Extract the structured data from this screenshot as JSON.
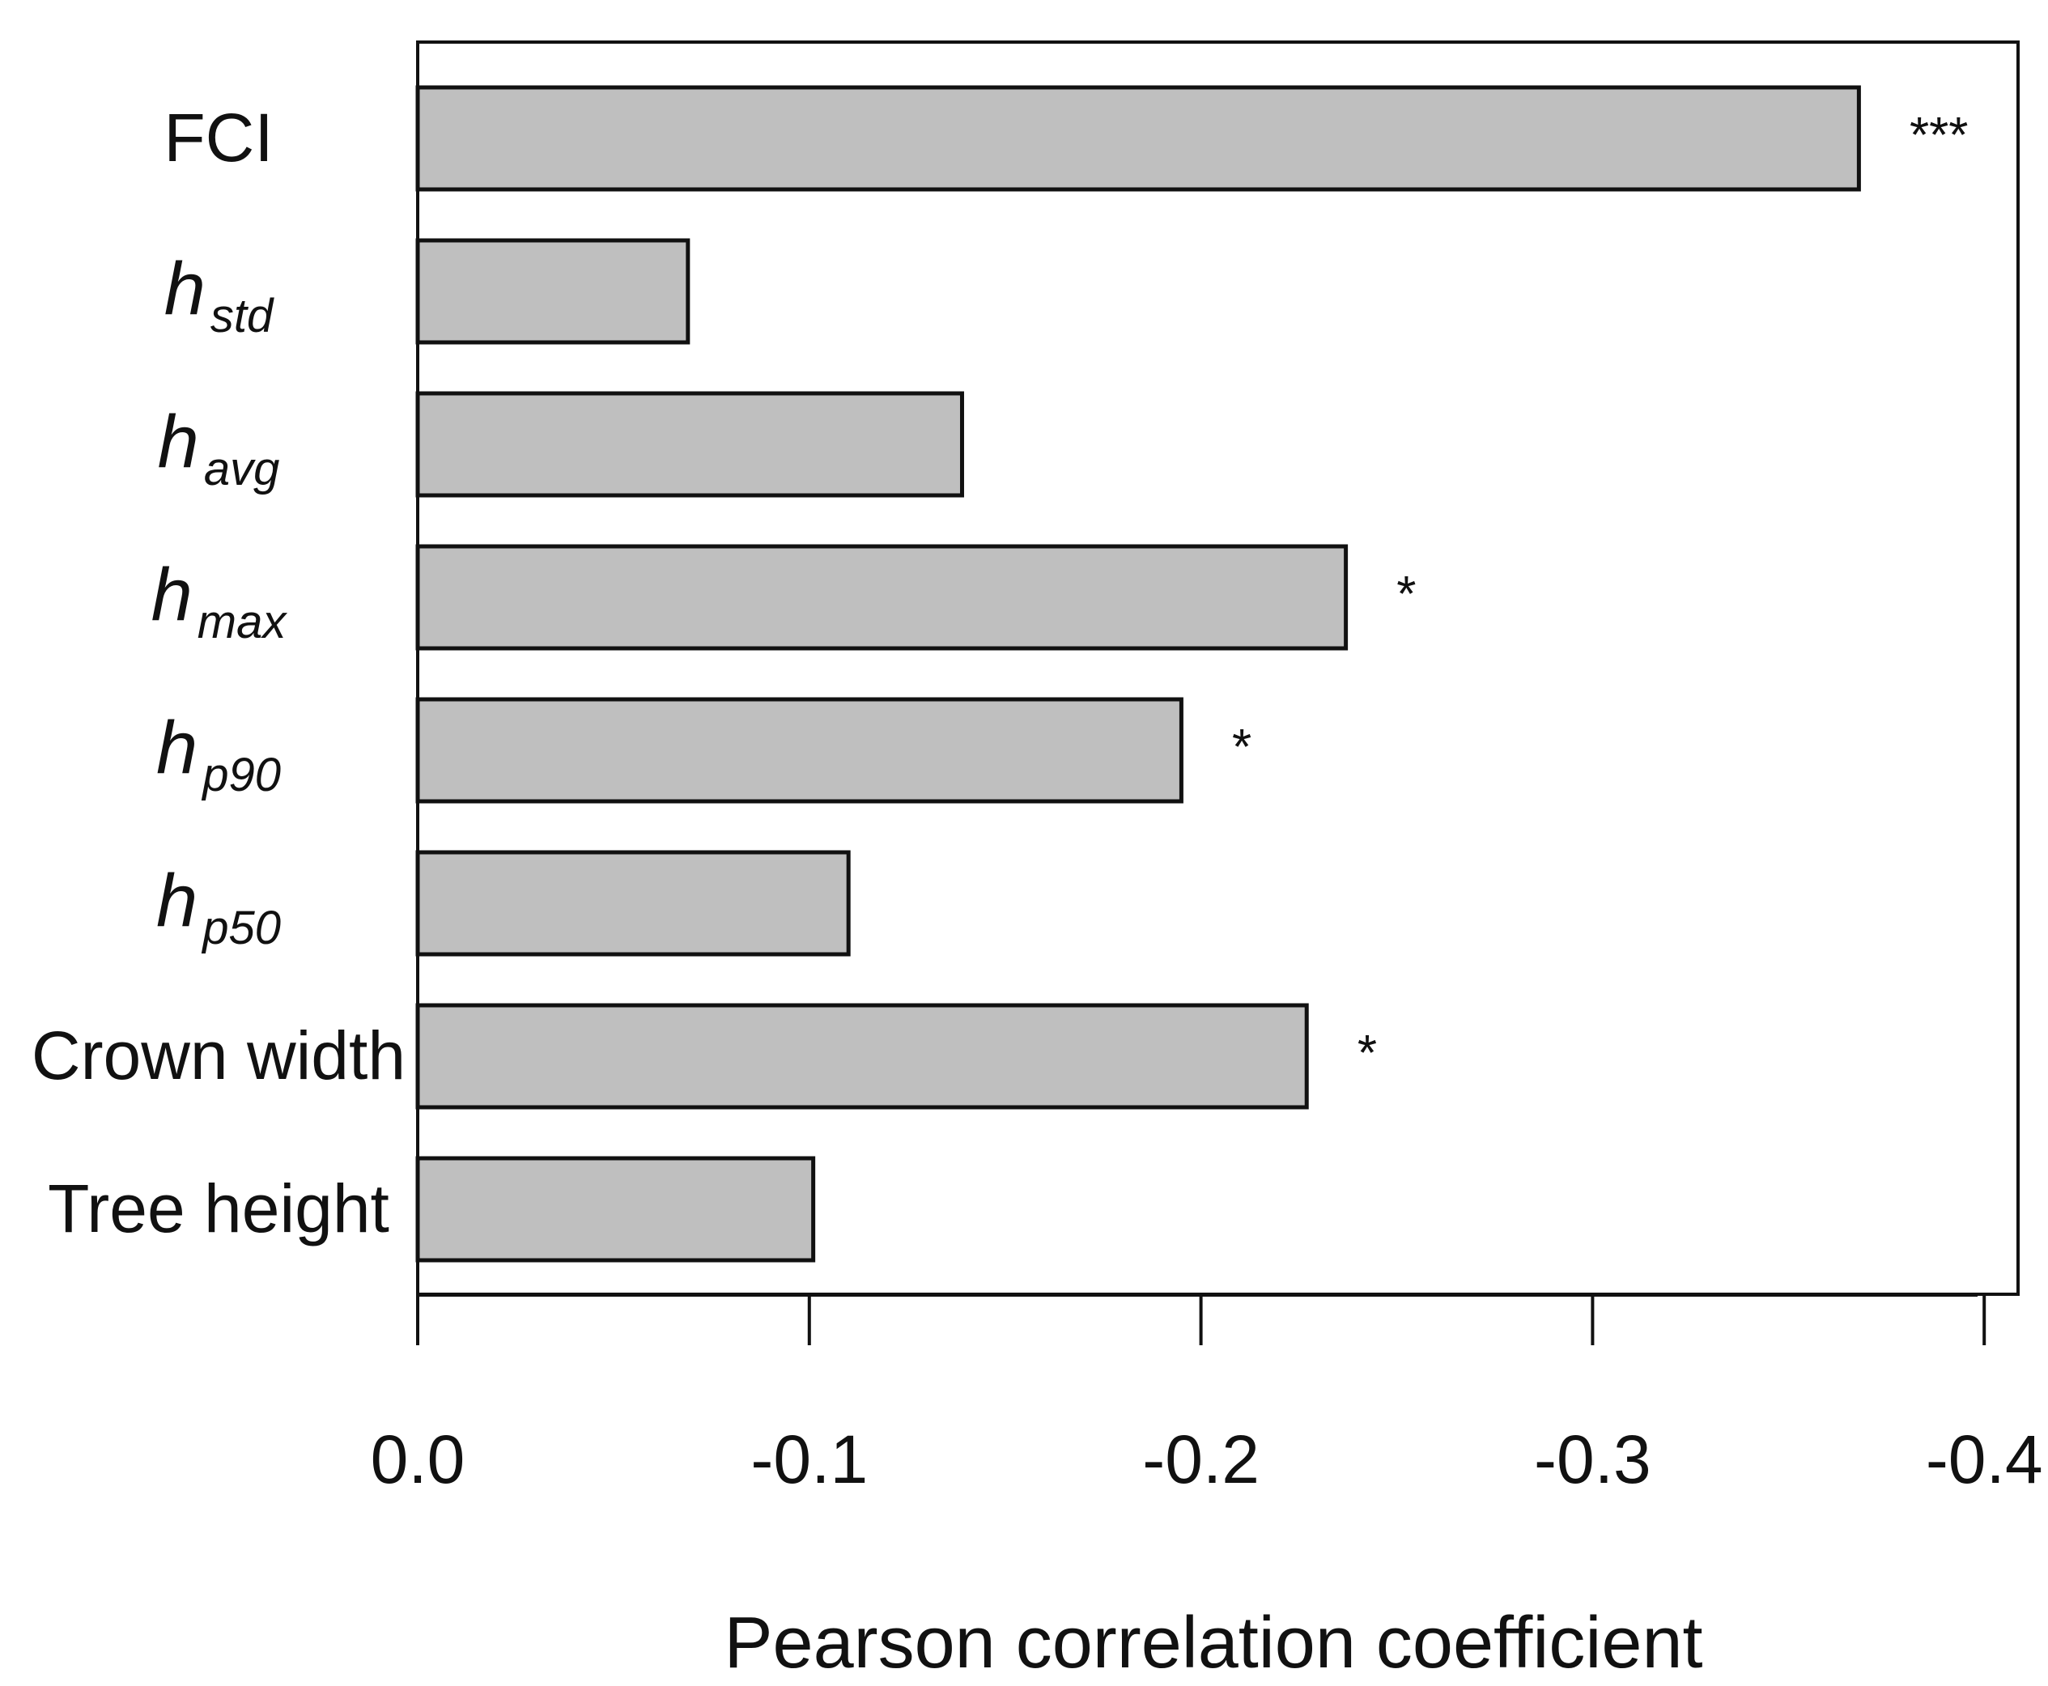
{
  "chart_data": {
    "type": "bar",
    "orientation": "horizontal",
    "title": "",
    "xlabel": "Pearson correlation coefficient",
    "ylabel": "",
    "xlim": [
      0.0,
      -0.41
    ],
    "x_ticks": [
      0.0,
      -0.1,
      -0.2,
      -0.3,
      -0.4
    ],
    "x_tick_labels": [
      "0.0",
      "-0.1",
      "-0.2",
      "-0.3",
      "-0.4"
    ],
    "grid": false,
    "bar_color": "#bfbfbf",
    "categories": [
      {
        "id": "fci",
        "label": "FCI",
        "base": "FCI",
        "sub": ""
      },
      {
        "id": "hstd",
        "label": "h std",
        "base": "h",
        "sub": "std"
      },
      {
        "id": "havg",
        "label": "h avg",
        "base": "h",
        "sub": "avg"
      },
      {
        "id": "hmax",
        "label": "h max",
        "base": "h",
        "sub": "max"
      },
      {
        "id": "hp90",
        "label": "h p90",
        "base": "h",
        "sub": "p90"
      },
      {
        "id": "hp50",
        "label": "h p50",
        "base": "h",
        "sub": "p50"
      },
      {
        "id": "crown-width",
        "label": "Crown width",
        "base": "Crown width",
        "sub": ""
      },
      {
        "id": "tree-height",
        "label": "Tree height",
        "base": "Tree height",
        "sub": ""
      }
    ],
    "values": [
      -0.368,
      -0.069,
      -0.139,
      -0.237,
      -0.195,
      -0.11,
      -0.227,
      -0.101
    ],
    "significance": [
      "***",
      "",
      "",
      "*",
      "*",
      "",
      "*",
      ""
    ]
  }
}
